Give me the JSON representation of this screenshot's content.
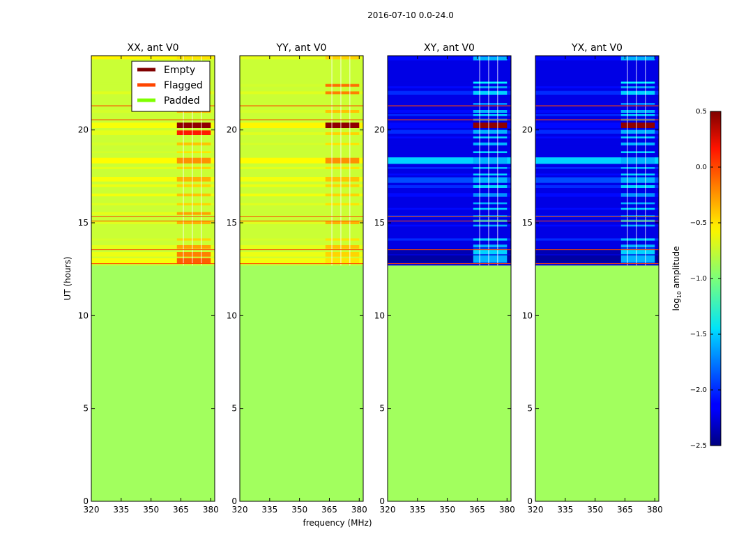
{
  "chart_data": {
    "type": "heatmap",
    "suptitle": "2016-07-10 0.0-24.0",
    "xlabel": "frequency (MHz)",
    "ylabel": "UT (hours)",
    "xlim": [
      320,
      382
    ],
    "ylim": [
      0,
      24
    ],
    "x_ticks": [
      320,
      335,
      350,
      365,
      380
    ],
    "y_ticks": [
      0,
      5,
      10,
      15,
      20
    ],
    "colorbar": {
      "label_main": "log",
      "label_sub": "10",
      "label_rest": " amplitude",
      "range": [
        -2.5,
        0.5
      ],
      "ticks": [
        0.5,
        0.0,
        -0.5,
        -1.0,
        -1.5,
        -2.0,
        -2.5
      ],
      "tick_labels": [
        "0.5",
        "0.0",
        "−0.5",
        "−1.0",
        "−1.5",
        "−2.0",
        "−2.5"
      ]
    },
    "legend": {
      "placement": "top-right of first panel",
      "entries": [
        {
          "label": "Empty",
          "color": "#800000"
        },
        {
          "label": "Flagged",
          "color": "#ff4500"
        },
        {
          "label": "Padded",
          "color": "#7fff00"
        }
      ]
    },
    "padded_value": -0.9,
    "data_start_ut": 12.7,
    "strong_band_mhz": [
      363,
      380
    ],
    "flag_lines_ut": [
      21.3,
      20.55,
      15.35,
      15.1,
      13.55,
      12.8
    ],
    "panels": [
      {
        "title": "XX, ant V0",
        "base_level": -0.78,
        "rows": [
          {
            "ut": 23.9,
            "h": 0.2,
            "val": -0.6,
            "band_val": -0.55
          },
          {
            "ut": 22.5,
            "h": 0.12,
            "val": -0.78,
            "band_val": -0.6
          },
          {
            "ut": 22.0,
            "h": 0.15,
            "val": -0.72,
            "band_val": -0.5
          },
          {
            "ut": 21.0,
            "h": 0.15,
            "val": -0.75,
            "band_val": -0.4
          },
          {
            "ut": 20.25,
            "h": 0.3,
            "val": -0.65,
            "band_val": 0.45
          },
          {
            "ut": 19.85,
            "h": 0.25,
            "val": -0.7,
            "band_val": 0.05
          },
          {
            "ut": 19.25,
            "h": 0.15,
            "val": -0.75,
            "band_val": -0.45
          },
          {
            "ut": 18.8,
            "h": 0.1,
            "val": -0.75,
            "band_val": -0.55
          },
          {
            "ut": 18.35,
            "h": 0.3,
            "val": -0.62,
            "band_val": -0.3
          },
          {
            "ut": 17.95,
            "h": 0.12,
            "val": -0.7,
            "band_val": -0.5
          },
          {
            "ut": 17.35,
            "h": 0.25,
            "val": -0.65,
            "band_val": -0.4
          },
          {
            "ut": 17.0,
            "h": 0.15,
            "val": -0.68,
            "band_val": -0.5
          },
          {
            "ut": 16.5,
            "h": 0.15,
            "val": -0.66,
            "band_val": -0.45
          },
          {
            "ut": 16.0,
            "h": 0.12,
            "val": -0.72,
            "band_val": -0.5
          },
          {
            "ut": 15.5,
            "h": 0.15,
            "val": -0.7,
            "band_val": -0.35
          },
          {
            "ut": 15.0,
            "h": 0.15,
            "val": -0.72,
            "band_val": -0.4
          },
          {
            "ut": 14.1,
            "h": 0.12,
            "val": -0.75,
            "band_val": -0.5
          },
          {
            "ut": 13.7,
            "h": 0.2,
            "val": -0.7,
            "band_val": -0.35
          },
          {
            "ut": 13.3,
            "h": 0.25,
            "val": -0.68,
            "band_val": -0.25
          },
          {
            "ut": 12.95,
            "h": 0.3,
            "val": -0.65,
            "band_val": -0.15
          }
        ]
      },
      {
        "title": "YY, ant V0",
        "base_level": -0.78,
        "rows": [
          {
            "ut": 23.9,
            "h": 0.2,
            "val": -0.7,
            "band_val": -0.5
          },
          {
            "ut": 22.4,
            "h": 0.15,
            "val": -0.76,
            "band_val": -0.2
          },
          {
            "ut": 22.0,
            "h": 0.15,
            "val": -0.72,
            "band_val": -0.25
          },
          {
            "ut": 21.0,
            "h": 0.15,
            "val": -0.75,
            "band_val": -0.45
          },
          {
            "ut": 20.25,
            "h": 0.3,
            "val": -0.6,
            "band_val": 0.45
          },
          {
            "ut": 19.8,
            "h": 0.15,
            "val": -0.72,
            "band_val": -0.5
          },
          {
            "ut": 19.25,
            "h": 0.12,
            "val": -0.75,
            "band_val": -0.55
          },
          {
            "ut": 18.35,
            "h": 0.3,
            "val": -0.62,
            "band_val": -0.3
          },
          {
            "ut": 17.95,
            "h": 0.12,
            "val": -0.7,
            "band_val": -0.55
          },
          {
            "ut": 17.35,
            "h": 0.25,
            "val": -0.66,
            "band_val": -0.45
          },
          {
            "ut": 17.0,
            "h": 0.15,
            "val": -0.68,
            "band_val": -0.5
          },
          {
            "ut": 16.5,
            "h": 0.15,
            "val": -0.66,
            "band_val": -0.5
          },
          {
            "ut": 16.0,
            "h": 0.12,
            "val": -0.72,
            "band_val": -0.55
          },
          {
            "ut": 15.0,
            "h": 0.15,
            "val": -0.72,
            "band_val": -0.4
          },
          {
            "ut": 14.1,
            "h": 0.12,
            "val": -0.75,
            "band_val": -0.55
          },
          {
            "ut": 13.7,
            "h": 0.2,
            "val": -0.7,
            "band_val": -0.45
          },
          {
            "ut": 13.3,
            "h": 0.25,
            "val": -0.68,
            "band_val": -0.5
          },
          {
            "ut": 12.95,
            "h": 0.3,
            "val": -0.66,
            "band_val": -0.55
          }
        ]
      },
      {
        "title": "XY, ant V0",
        "base_level": -2.2,
        "rows": [
          {
            "ut": 23.85,
            "h": 0.2,
            "val": -2.1,
            "band_val": -1.6
          },
          {
            "ut": 22.55,
            "h": 0.1,
            "val": -2.2,
            "band_val": -1.4
          },
          {
            "ut": 22.3,
            "h": 0.1,
            "val": -2.1,
            "band_val": -1.6
          },
          {
            "ut": 22.0,
            "h": 0.2,
            "val": -2.0,
            "band_val": -1.5
          },
          {
            "ut": 21.4,
            "h": 0.1,
            "val": -2.2,
            "band_val": -1.7
          },
          {
            "ut": 21.0,
            "h": 0.15,
            "val": -2.1,
            "band_val": -1.6
          },
          {
            "ut": 20.8,
            "h": 0.1,
            "val": -2.0,
            "band_val": -1.5
          },
          {
            "ut": 20.55,
            "h": 0.1,
            "val": -2.2,
            "band_val": -1.6
          },
          {
            "ut": 20.25,
            "h": 0.3,
            "val": -2.1,
            "band_val": 0.45
          },
          {
            "ut": 19.9,
            "h": 0.2,
            "val": -2.0,
            "band_val": -1.6
          },
          {
            "ut": 19.6,
            "h": 0.1,
            "val": -2.1,
            "band_val": -1.5
          },
          {
            "ut": 19.25,
            "h": 0.15,
            "val": -2.2,
            "band_val": -1.6
          },
          {
            "ut": 18.8,
            "h": 0.1,
            "val": -2.2,
            "band_val": -1.5
          },
          {
            "ut": 18.35,
            "h": 0.35,
            "val": -1.5,
            "band_val": -1.6
          },
          {
            "ut": 17.95,
            "h": 0.1,
            "val": -2.0,
            "band_val": -1.6
          },
          {
            "ut": 17.6,
            "h": 0.1,
            "val": -2.1,
            "band_val": -1.5
          },
          {
            "ut": 17.3,
            "h": 0.3,
            "val": -1.9,
            "band_val": -1.6
          },
          {
            "ut": 16.95,
            "h": 0.15,
            "val": -2.0,
            "band_val": -1.5
          },
          {
            "ut": 16.5,
            "h": 0.2,
            "val": -2.1,
            "band_val": -1.7
          },
          {
            "ut": 16.05,
            "h": 0.1,
            "val": -2.2,
            "band_val": -1.6
          },
          {
            "ut": 15.75,
            "h": 0.1,
            "val": -2.1,
            "band_val": -1.5
          },
          {
            "ut": 15.35,
            "h": 0.1,
            "val": -2.0,
            "band_val": -1.6
          },
          {
            "ut": 15.1,
            "h": 0.12,
            "val": -2.2,
            "band_val": -1.5
          },
          {
            "ut": 14.85,
            "h": 0.1,
            "val": -2.1,
            "band_val": -1.6
          },
          {
            "ut": 14.1,
            "h": 0.12,
            "val": -2.0,
            "band_val": -1.5
          },
          {
            "ut": 13.75,
            "h": 0.15,
            "val": -2.2,
            "band_val": -1.6
          },
          {
            "ut": 13.45,
            "h": 0.3,
            "val": -2.35,
            "band_val": -1.5
          },
          {
            "ut": 13.05,
            "h": 0.4,
            "val": -2.4,
            "band_val": -1.6
          }
        ]
      },
      {
        "title": "YX, ant V0",
        "base_level": -2.2,
        "rows": [
          {
            "ut": 23.85,
            "h": 0.2,
            "val": -2.1,
            "band_val": -1.6
          },
          {
            "ut": 22.55,
            "h": 0.1,
            "val": -2.2,
            "band_val": -1.4
          },
          {
            "ut": 22.3,
            "h": 0.1,
            "val": -2.1,
            "band_val": -1.6
          },
          {
            "ut": 22.0,
            "h": 0.2,
            "val": -2.0,
            "band_val": -1.5
          },
          {
            "ut": 21.4,
            "h": 0.1,
            "val": -2.2,
            "band_val": -1.7
          },
          {
            "ut": 21.0,
            "h": 0.15,
            "val": -2.1,
            "band_val": -1.6
          },
          {
            "ut": 20.8,
            "h": 0.1,
            "val": -2.0,
            "band_val": -1.5
          },
          {
            "ut": 20.55,
            "h": 0.1,
            "val": -2.2,
            "band_val": -1.6
          },
          {
            "ut": 20.25,
            "h": 0.3,
            "val": -2.1,
            "band_val": 0.45
          },
          {
            "ut": 19.9,
            "h": 0.2,
            "val": -2.0,
            "band_val": -1.6
          },
          {
            "ut": 19.6,
            "h": 0.1,
            "val": -2.1,
            "band_val": -1.5
          },
          {
            "ut": 19.25,
            "h": 0.15,
            "val": -2.2,
            "band_val": -1.6
          },
          {
            "ut": 18.8,
            "h": 0.1,
            "val": -2.2,
            "band_val": -1.5
          },
          {
            "ut": 18.35,
            "h": 0.35,
            "val": -1.5,
            "band_val": -1.6
          },
          {
            "ut": 17.95,
            "h": 0.1,
            "val": -2.0,
            "band_val": -1.6
          },
          {
            "ut": 17.6,
            "h": 0.1,
            "val": -2.1,
            "band_val": -1.5
          },
          {
            "ut": 17.3,
            "h": 0.3,
            "val": -1.9,
            "band_val": -1.6
          },
          {
            "ut": 16.95,
            "h": 0.15,
            "val": -2.0,
            "band_val": -1.5
          },
          {
            "ut": 16.5,
            "h": 0.2,
            "val": -2.1,
            "band_val": -1.7
          },
          {
            "ut": 16.05,
            "h": 0.1,
            "val": -2.2,
            "band_val": -1.6
          },
          {
            "ut": 15.75,
            "h": 0.1,
            "val": -2.1,
            "band_val": -1.5
          },
          {
            "ut": 15.35,
            "h": 0.1,
            "val": -2.0,
            "band_val": -1.6
          },
          {
            "ut": 15.1,
            "h": 0.12,
            "val": -2.2,
            "band_val": -1.5
          },
          {
            "ut": 14.85,
            "h": 0.1,
            "val": -2.1,
            "band_val": -1.6
          },
          {
            "ut": 14.1,
            "h": 0.12,
            "val": -2.0,
            "band_val": -1.5
          },
          {
            "ut": 13.75,
            "h": 0.15,
            "val": -2.2,
            "band_val": -1.6
          },
          {
            "ut": 13.45,
            "h": 0.3,
            "val": -2.35,
            "band_val": -1.5
          },
          {
            "ut": 13.05,
            "h": 0.4,
            "val": -2.4,
            "band_val": -1.6
          }
        ]
      }
    ]
  }
}
